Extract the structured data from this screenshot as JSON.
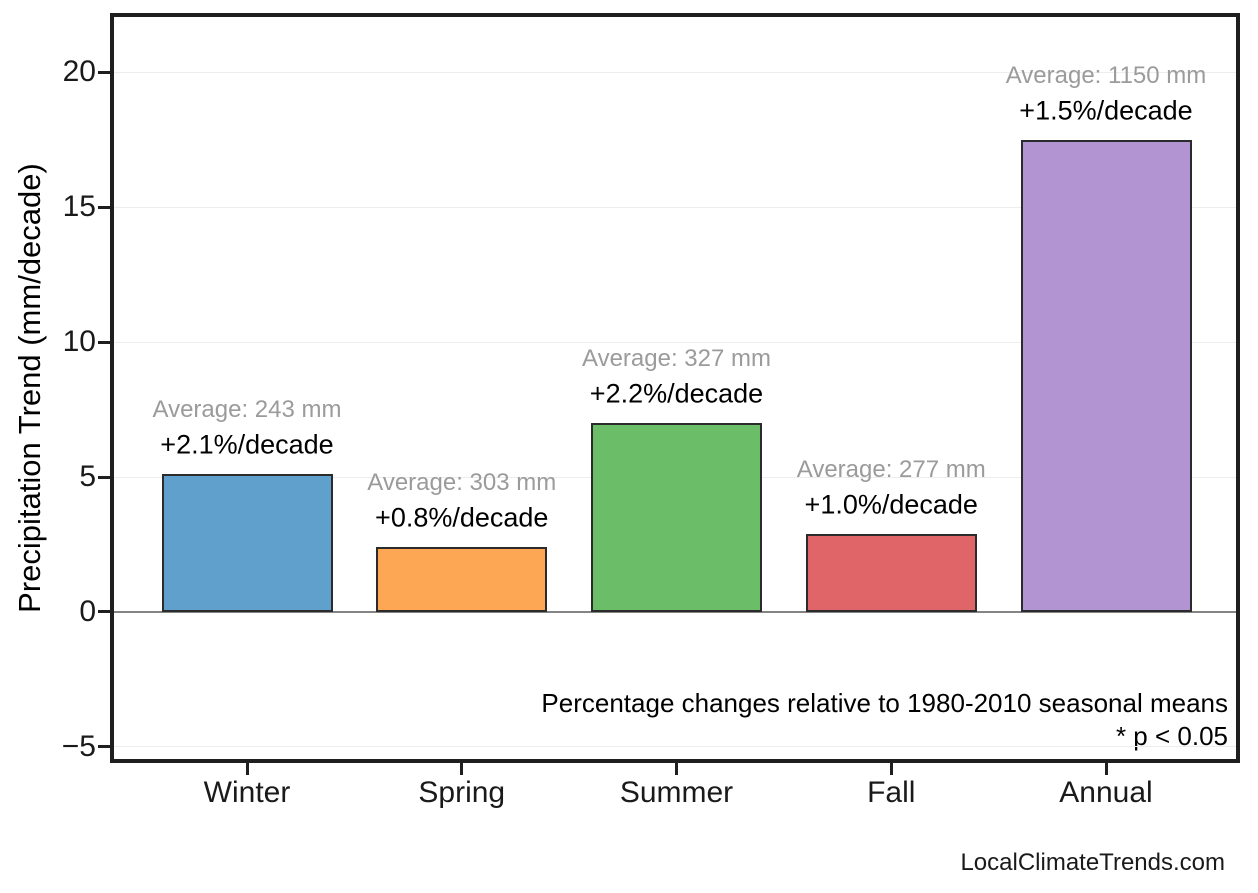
{
  "chart_data": {
    "type": "bar",
    "title": "",
    "xlabel": "",
    "ylabel": "Precipitation Trend (mm/decade)",
    "categories": [
      "Winter",
      "Spring",
      "Summer",
      "Fall",
      "Annual"
    ],
    "values": [
      5.1,
      2.4,
      7.0,
      2.9,
      17.5
    ],
    "bar_colors": [
      "#5FA0CC",
      "#FDA755",
      "#6BBE67",
      "#E06568",
      "#B294D2"
    ],
    "bar_edge_color": "#2b2b2b",
    "annotations": [
      {
        "average": "Average: 243 mm",
        "trend": "+2.1%/decade"
      },
      {
        "average": "Average: 303 mm",
        "trend": "+0.8%/decade"
      },
      {
        "average": "Average: 327 mm",
        "trend": "+2.2%/decade"
      },
      {
        "average": "Average: 277 mm",
        "trend": "+1.0%/decade"
      },
      {
        "average": "Average: 1150 mm",
        "trend": "+1.5%/decade"
      }
    ],
    "yticks": {
      "values": [
        -5,
        0,
        5,
        10,
        15,
        20
      ],
      "labels": [
        "−5",
        "0",
        "5",
        "10",
        "15",
        "20"
      ]
    },
    "ylim": [
      -5.6,
      22.2
    ],
    "grid": true,
    "zero_line": true,
    "legend": "none",
    "footnote_line1": "Percentage changes relative to 1980-2010 seasonal means",
    "footnote_line2": "* p < 0.05",
    "watermark": "LocalClimateTrends.com",
    "colors": {
      "average_label": "#9b9b9b",
      "trend_label": "#000000",
      "grid": "#ededed",
      "zero_line": "#848484",
      "axis_border": "#1f1f1f",
      "background": "#ffffff"
    }
  }
}
